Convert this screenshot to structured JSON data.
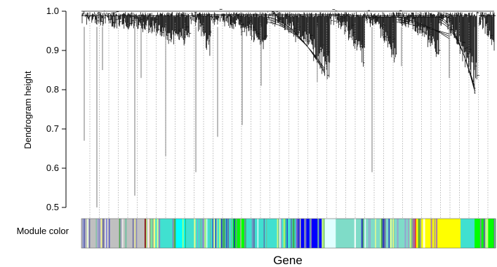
{
  "chart_data": {
    "type": "dendrogram",
    "ylabel": "Dendrogram height",
    "xlabel": "Gene",
    "module_label": "Module color",
    "ylim": [
      0.5,
      1.0
    ],
    "yticks": [
      "0.5",
      "0.6",
      "0.7",
      "0.8",
      "0.9",
      "1.0"
    ],
    "ytick_values": [
      0.5,
      0.6,
      0.7,
      0.8,
      0.9,
      1.0
    ],
    "module_colors": [
      {
        "name": "grey",
        "color": "#c0c0c0",
        "fraction": 0.135
      },
      {
        "name": "darkred",
        "color": "#8b1a1a",
        "fraction": 0.012
      },
      {
        "name": "turquoise",
        "color": "#40e0d0",
        "fraction": 0.055
      },
      {
        "name": "cyan",
        "color": "#00ffff",
        "fraction": 0.022
      },
      {
        "name": "turquoise",
        "color": "#40e0d0",
        "fraction": 0.1
      },
      {
        "name": "green",
        "color": "#00ff00",
        "fraction": 0.025
      },
      {
        "name": "turquoise",
        "color": "#40e0d0",
        "fraction": 0.11
      },
      {
        "name": "blue",
        "color": "#0000ff",
        "fraction": 0.055
      },
      {
        "name": "lightcyan",
        "color": "#e0ffff",
        "fraction": 0.03
      },
      {
        "name": "mixed",
        "color": "#7fdcc8",
        "fraction": 0.16
      },
      {
        "name": "red",
        "color": "#ff2020",
        "fraction": 0.012
      },
      {
        "name": "yellow",
        "color": "#ffff00",
        "fraction": 0.095
      },
      {
        "name": "turquoise",
        "color": "#40e0d0",
        "fraction": 0.03
      },
      {
        "name": "green",
        "color": "#00ff00",
        "fraction": 0.045
      }
    ],
    "leaf_drops": [
      0.67,
      0.5,
      0.85,
      0.53,
      0.83,
      0.63,
      0.59,
      0.68,
      0.71,
      0.81,
      0.82,
      0.59,
      0.86,
      0.83,
      0.79
    ]
  }
}
